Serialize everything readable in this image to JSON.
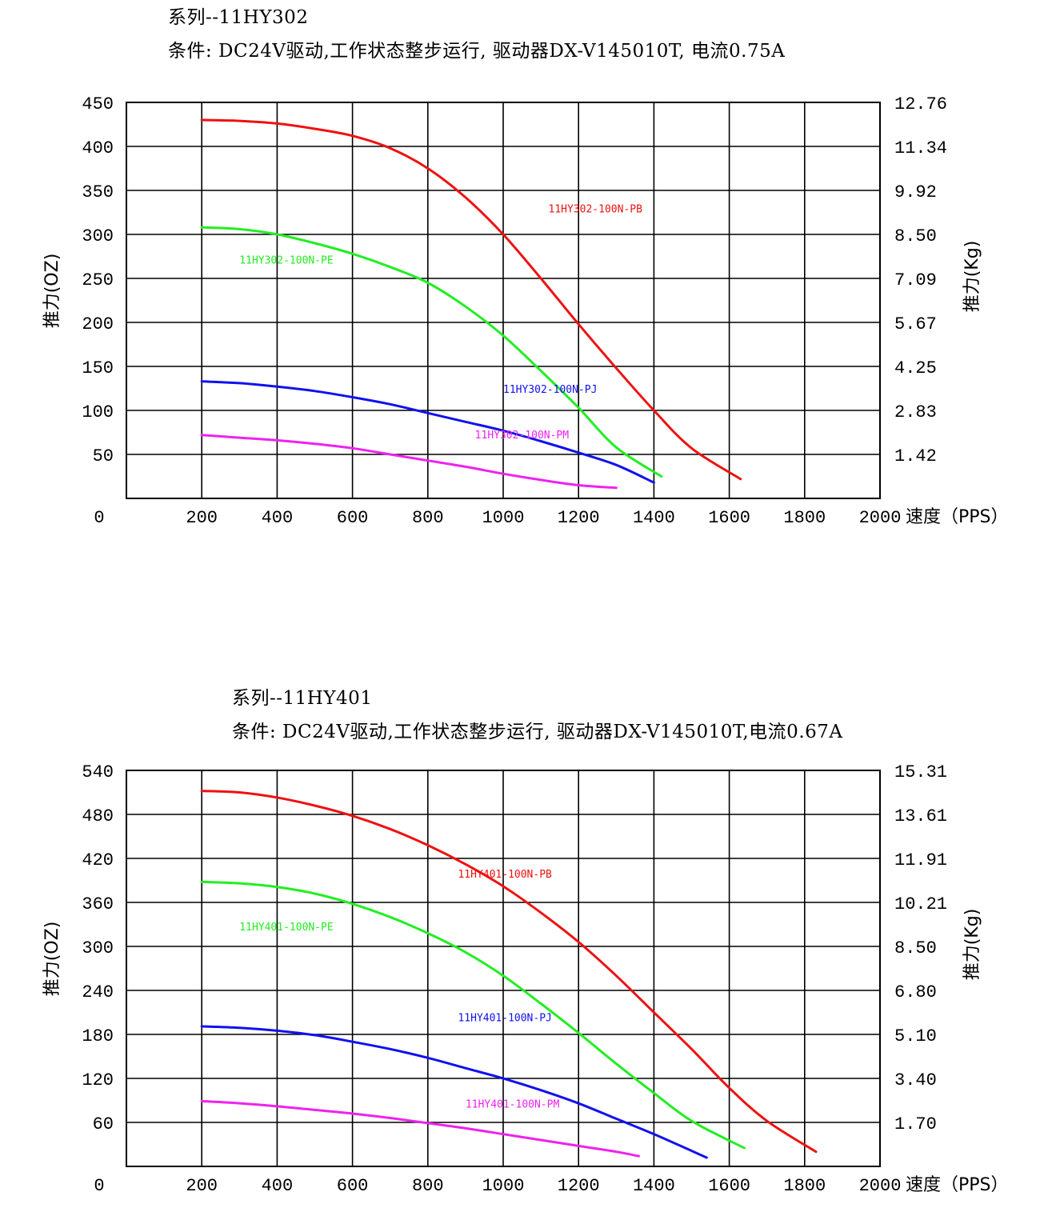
{
  "charts": [
    {
      "series_title": "系列--11HY302",
      "conditions": "条件: DC24V驱动,工作状态整步运行, 驱动器DX-V145010T, 电流0.75A"
    },
    {
      "series_title": "系列--11HY401",
      "conditions": "条件: DC24V驱动,工作状态整步运行, 驱动器DX-V145010T,电流0.67A"
    }
  ],
  "chart_data": [
    {
      "type": "line",
      "xlabel": "速度（PPS）",
      "ylabel": "推力(OZ)",
      "y2label": "推力(Kg)",
      "xlim": [
        0,
        2000
      ],
      "ylim": [
        0,
        450
      ],
      "x_ticks": [
        "0",
        "200",
        "400",
        "600",
        "800",
        "1000",
        "1200",
        "1400",
        "1600",
        "1800",
        "2000"
      ],
      "y_ticks": [
        "450",
        "400",
        "350",
        "300",
        "250",
        "200",
        "150",
        "100",
        "50"
      ],
      "y2_ticks": [
        "12.76",
        "11.34",
        "9.92",
        "8.50",
        "7.09",
        "5.67",
        "4.25",
        "2.83",
        "1.42"
      ],
      "grid": true,
      "series": [
        {
          "name": "11HY302-100N-PB",
          "color": "#ee1111",
          "label_at": [
            1120,
            325
          ],
          "points": [
            [
              200,
              430
            ],
            [
              300,
              429
            ],
            [
              400,
              426
            ],
            [
              500,
              420
            ],
            [
              600,
              412
            ],
            [
              700,
              398
            ],
            [
              800,
              375
            ],
            [
              900,
              342
            ],
            [
              1000,
              300
            ],
            [
              1100,
              250
            ],
            [
              1200,
              198
            ],
            [
              1300,
              148
            ],
            [
              1400,
              100
            ],
            [
              1500,
              57
            ],
            [
              1630,
              22
            ]
          ]
        },
        {
          "name": "11HY302-100N-PE",
          "color": "#22ee22",
          "label_at": [
            300,
            267
          ],
          "points": [
            [
              200,
              308
            ],
            [
              300,
              306
            ],
            [
              400,
              300
            ],
            [
              500,
              290
            ],
            [
              600,
              278
            ],
            [
              700,
              263
            ],
            [
              800,
              245
            ],
            [
              900,
              218
            ],
            [
              1000,
              185
            ],
            [
              1100,
              145
            ],
            [
              1200,
              103
            ],
            [
              1300,
              58
            ],
            [
              1420,
              25
            ]
          ]
        },
        {
          "name": "11HY302-100N-PJ",
          "color": "#1111ee",
          "label_at": [
            1000,
            120
          ],
          "points": [
            [
              200,
              133
            ],
            [
              300,
              131
            ],
            [
              400,
              127
            ],
            [
              500,
              122
            ],
            [
              600,
              115
            ],
            [
              700,
              107
            ],
            [
              800,
              97
            ],
            [
              900,
              87
            ],
            [
              1000,
              77
            ],
            [
              1100,
              65
            ],
            [
              1200,
              52
            ],
            [
              1300,
              38
            ],
            [
              1400,
              18
            ]
          ]
        },
        {
          "name": "11HY302-100N-PM",
          "color": "#ee22ee",
          "label_at": [
            925,
            68
          ],
          "points": [
            [
              200,
              72
            ],
            [
              300,
              69
            ],
            [
              400,
              66
            ],
            [
              500,
              62
            ],
            [
              600,
              57
            ],
            [
              700,
              50
            ],
            [
              800,
              43
            ],
            [
              900,
              36
            ],
            [
              1000,
              28
            ],
            [
              1100,
              21
            ],
            [
              1200,
              15
            ],
            [
              1300,
              12
            ]
          ]
        }
      ]
    },
    {
      "type": "line",
      "xlabel": "速度（PPS）",
      "ylabel": "推力(OZ)",
      "y2label": "推力(Kg)",
      "xlim": [
        0,
        2000
      ],
      "ylim": [
        0,
        540
      ],
      "x_ticks": [
        "0",
        "200",
        "400",
        "600",
        "800",
        "1000",
        "1200",
        "1400",
        "1600",
        "1800",
        "2000"
      ],
      "y_ticks": [
        "540",
        "480",
        "420",
        "360",
        "300",
        "240",
        "180",
        "120",
        "60"
      ],
      "y2_ticks": [
        "15.31",
        "13.61",
        "11.91",
        "10.21",
        "8.50",
        "6.80",
        "5.10",
        "3.40",
        "1.70"
      ],
      "grid": true,
      "series": [
        {
          "name": "11HY401-100N-PB",
          "color": "#ee1111",
          "label_at": [
            880,
            394
          ],
          "points": [
            [
              200,
              512
            ],
            [
              300,
              510
            ],
            [
              400,
              503
            ],
            [
              500,
              492
            ],
            [
              600,
              478
            ],
            [
              700,
              460
            ],
            [
              800,
              438
            ],
            [
              900,
              412
            ],
            [
              1000,
              382
            ],
            [
              1100,
              346
            ],
            [
              1200,
              306
            ],
            [
              1300,
              260
            ],
            [
              1400,
              210
            ],
            [
              1500,
              160
            ],
            [
              1600,
              107
            ],
            [
              1700,
              62
            ],
            [
              1830,
              20
            ]
          ]
        },
        {
          "name": "11HY401-100N-PE",
          "color": "#22ee22",
          "label_at": [
            300,
            322
          ],
          "points": [
            [
              200,
              388
            ],
            [
              300,
              386
            ],
            [
              400,
              381
            ],
            [
              500,
              372
            ],
            [
              600,
              358
            ],
            [
              700,
              340
            ],
            [
              800,
              318
            ],
            [
              900,
              292
            ],
            [
              1000,
              260
            ],
            [
              1100,
              222
            ],
            [
              1200,
              182
            ],
            [
              1300,
              140
            ],
            [
              1400,
              100
            ],
            [
              1500,
              62
            ],
            [
              1640,
              25
            ]
          ]
        },
        {
          "name": "11HY401-100N-PJ",
          "color": "#1111ee",
          "label_at": [
            880,
            198
          ],
          "points": [
            [
              200,
              191
            ],
            [
              300,
              189
            ],
            [
              400,
              185
            ],
            [
              500,
              179
            ],
            [
              600,
              170
            ],
            [
              700,
              160
            ],
            [
              800,
              148
            ],
            [
              900,
              134
            ],
            [
              1000,
              120
            ],
            [
              1100,
              104
            ],
            [
              1200,
              86
            ],
            [
              1300,
              65
            ],
            [
              1400,
              44
            ],
            [
              1540,
              12
            ]
          ]
        },
        {
          "name": "11HY401-100N-PM",
          "color": "#ee22ee",
          "label_at": [
            900,
            80
          ],
          "points": [
            [
              200,
              89
            ],
            [
              300,
              86
            ],
            [
              400,
              82
            ],
            [
              500,
              77
            ],
            [
              600,
              72
            ],
            [
              700,
              66
            ],
            [
              800,
              59
            ],
            [
              900,
              52
            ],
            [
              1000,
              44
            ],
            [
              1100,
              36
            ],
            [
              1200,
              28
            ],
            [
              1300,
              20
            ],
            [
              1360,
              14
            ]
          ]
        }
      ]
    }
  ]
}
